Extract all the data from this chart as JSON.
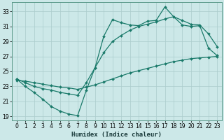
{
  "background_color": "#cce8e8",
  "grid_color": "#aacccc",
  "line_color": "#1a7a6a",
  "xlabel": "Humidex (Indice chaleur)",
  "xlim": [
    -0.5,
    23.5
  ],
  "ylim": [
    18.5,
    34.2
  ],
  "xticks": [
    0,
    1,
    2,
    3,
    4,
    5,
    6,
    7,
    8,
    9,
    10,
    11,
    12,
    13,
    14,
    15,
    16,
    17,
    18,
    19,
    20,
    21,
    22,
    23
  ],
  "yticks": [
    19,
    21,
    23,
    25,
    27,
    29,
    31,
    33
  ],
  "line1_x": [
    0,
    1,
    2,
    3,
    4,
    5,
    6,
    7,
    8,
    9,
    10,
    11,
    12,
    13,
    14,
    15,
    16,
    17,
    18,
    19,
    20,
    21,
    22,
    23
  ],
  "line1_y": [
    24.0,
    23.0,
    22.2,
    21.3,
    20.3,
    19.7,
    19.3,
    19.1,
    22.5,
    25.5,
    29.7,
    31.9,
    31.5,
    31.2,
    31.1,
    31.7,
    31.8,
    33.6,
    32.3,
    31.2,
    31.0,
    31.1,
    28.1,
    27.1
  ],
  "line2_x": [
    0,
    1,
    2,
    3,
    4,
    5,
    6,
    7,
    8,
    9,
    10,
    11,
    12,
    13,
    14,
    15,
    16,
    17,
    18,
    19,
    20,
    21,
    22,
    23
  ],
  "line2_y": [
    24.0,
    23.5,
    23.0,
    22.7,
    22.5,
    22.2,
    22.0,
    21.8,
    23.5,
    25.5,
    27.5,
    29.0,
    29.8,
    30.5,
    31.0,
    31.3,
    31.6,
    32.0,
    32.3,
    31.8,
    31.3,
    31.2,
    30.0,
    28.3
  ],
  "line3_x": [
    0,
    1,
    2,
    3,
    4,
    5,
    6,
    7,
    8,
    9,
    10,
    11,
    12,
    13,
    14,
    15,
    16,
    17,
    18,
    19,
    20,
    21,
    22,
    23
  ],
  "line3_y": [
    23.8,
    23.7,
    23.5,
    23.3,
    23.1,
    22.9,
    22.8,
    22.6,
    22.9,
    23.2,
    23.6,
    24.0,
    24.4,
    24.8,
    25.1,
    25.4,
    25.7,
    26.0,
    26.3,
    26.5,
    26.7,
    26.8,
    26.9,
    27.0
  ],
  "marker_size": 2.0,
  "linewidth": 0.9,
  "tick_labelsize": 5.5,
  "xlabel_fontsize": 6.5
}
